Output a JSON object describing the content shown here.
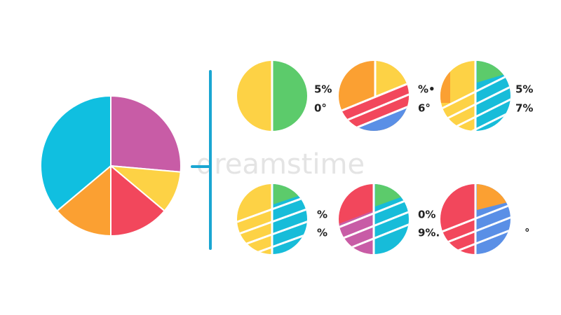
{
  "watermark": "dreamstime",
  "pies": [
    {
      "labels": [
        "5%",
        "0°"
      ]
    },
    {
      "labels": [
        "%•",
        "6°"
      ]
    },
    {
      "labels": [
        "5%",
        "7%"
      ]
    },
    {
      "labels": [
        "%",
        "%"
      ]
    },
    {
      "labels": [
        "0%",
        "9%."
      ]
    },
    {
      "labels": [
        "°"
      ]
    }
  ]
}
